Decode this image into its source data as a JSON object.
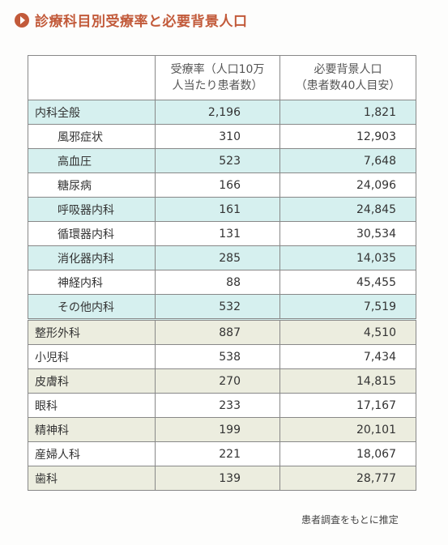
{
  "title": "診療科目別受療率と必要背景人口",
  "table": {
    "headers": {
      "col1": "",
      "col2_line1": "受療率（人口10万",
      "col2_line2": "人当たり患者数）",
      "col3_line1": "必要背景人口",
      "col3_line2": "（患者数40人目安）"
    },
    "rows": [
      {
        "label": "内科全般",
        "rate": "2,196",
        "pop": "1,821"
      },
      {
        "label": "風邪症状",
        "rate": "310",
        "pop": "12,903"
      },
      {
        "label": "高血圧",
        "rate": "523",
        "pop": "7,648"
      },
      {
        "label": "糖尿病",
        "rate": "166",
        "pop": "24,096"
      },
      {
        "label": "呼吸器内科",
        "rate": "161",
        "pop": "24,845"
      },
      {
        "label": "循環器内科",
        "rate": "131",
        "pop": "30,534"
      },
      {
        "label": "消化器内科",
        "rate": "285",
        "pop": "14,035"
      },
      {
        "label": "神経内科",
        "rate": "88",
        "pop": "45,455"
      },
      {
        "label": "その他内科",
        "rate": "532",
        "pop": "7,519"
      },
      {
        "label": "整形外科",
        "rate": "887",
        "pop": "4,510"
      },
      {
        "label": "小児科",
        "rate": "538",
        "pop": "7,434"
      },
      {
        "label": "皮膚科",
        "rate": "270",
        "pop": "14,815"
      },
      {
        "label": "眼科",
        "rate": "233",
        "pop": "17,167"
      },
      {
        "label": "精神科",
        "rate": "199",
        "pop": "20,101"
      },
      {
        "label": "産婦人科",
        "rate": "221",
        "pop": "18,067"
      },
      {
        "label": "歯科",
        "rate": "139",
        "pop": "28,777"
      }
    ]
  },
  "note": "患者調査をもとに推定"
}
